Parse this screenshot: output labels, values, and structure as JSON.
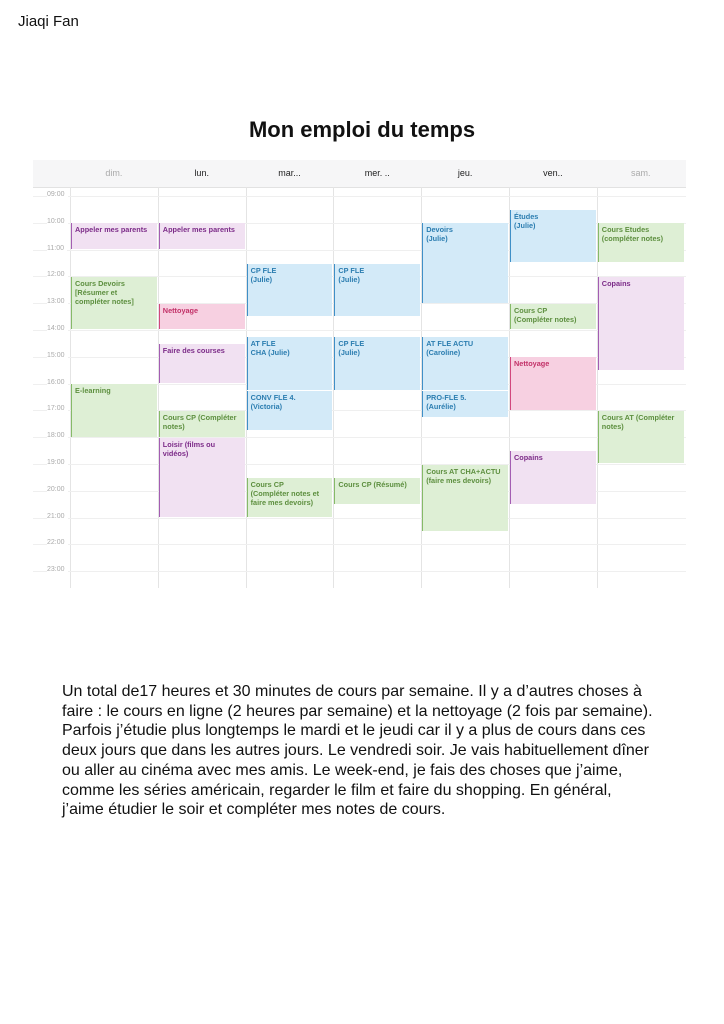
{
  "author": "Jiaqi Fan",
  "title": "Mon emploi du temps",
  "calendar": {
    "days": [
      {
        "label": "dim.",
        "muted": true
      },
      {
        "label": "lun.",
        "muted": false
      },
      {
        "label": "mar...",
        "muted": false
      },
      {
        "label": "mer. ..",
        "muted": false
      },
      {
        "label": "jeu.",
        "muted": false
      },
      {
        "label": "ven..",
        "muted": false
      },
      {
        "label": "sam.",
        "muted": true
      }
    ],
    "hours": [
      "09:00",
      "10:00",
      "11:00",
      "12:00",
      "13:00",
      "14:00",
      "15:00",
      "16:00",
      "17:00",
      "18:00",
      "19:00",
      "20:00",
      "21:00",
      "22:00",
      "23:00"
    ],
    "colors": {
      "purple": "#f1e1f2",
      "green": "#deefd5",
      "blue": "#d3eaf8",
      "pink": "#f7d0e1"
    },
    "events": [
      {
        "day": 0,
        "start": "10:00",
        "end": "11:00",
        "color": "purple",
        "text": "Appeler mes parents"
      },
      {
        "day": 0,
        "start": "12:00",
        "end": "14:00",
        "color": "green",
        "text": "Cours Devoirs\n[Résumer et\ncompléter notes]"
      },
      {
        "day": 0,
        "start": "16:00",
        "end": "18:00",
        "color": "green",
        "text": "E-learning"
      },
      {
        "day": 1,
        "start": "10:00",
        "end": "11:00",
        "color": "purple",
        "text": "Appeler mes parents"
      },
      {
        "day": 1,
        "start": "13:00",
        "end": "14:00",
        "color": "pink",
        "text": "Nettoyage"
      },
      {
        "day": 1,
        "start": "14:30",
        "end": "16:00",
        "color": "purple",
        "text": "Faire des courses"
      },
      {
        "day": 1,
        "start": "17:00",
        "end": "18:00",
        "color": "green",
        "text": "Cours CP (Compléter\nnotes)"
      },
      {
        "day": 1,
        "start": "18:00",
        "end": "21:00",
        "color": "purple",
        "text": "Loisir (films ou vidéos)"
      },
      {
        "day": 2,
        "start": "11:30",
        "end": "13:30",
        "color": "blue",
        "text": "CP FLE\n(Julie)"
      },
      {
        "day": 2,
        "start": "14:15",
        "end": "16:15",
        "color": "blue",
        "text": "AT FLE\nCHA    (Julie)"
      },
      {
        "day": 2,
        "start": "16:15",
        "end": "17:45",
        "color": "blue",
        "text": "CONV  FLE     4.\n(Victoria)"
      },
      {
        "day": 2,
        "start": "19:30",
        "end": "21:00",
        "color": "green",
        "text": "Cours CP\n(Compléter notes et\nfaire mes devoirs)"
      },
      {
        "day": 3,
        "start": "11:30",
        "end": "13:30",
        "color": "blue",
        "text": "CP FLE\n(Julie)"
      },
      {
        "day": 3,
        "start": "14:15",
        "end": "16:15",
        "color": "blue",
        "text": "CP FLE\n(Julie)"
      },
      {
        "day": 3,
        "start": "19:30",
        "end": "20:30",
        "color": "green",
        "text": "Cours CP (Résumé)"
      },
      {
        "day": 4,
        "start": "10:00",
        "end": "13:00",
        "color": "blue",
        "text": "Devoirs\n(Julie)"
      },
      {
        "day": 4,
        "start": "14:15",
        "end": "16:15",
        "color": "blue",
        "text": "AT FLE              ACTU\n(Caroline)"
      },
      {
        "day": 4,
        "start": "16:15",
        "end": "17:15",
        "color": "blue",
        "text": "PRO-FLE 5.\n(Aurélie)"
      },
      {
        "day": 4,
        "start": "19:00",
        "end": "21:30",
        "color": "green",
        "text": "Cours AT  CHA+ACTU\n(faire mes devoirs)"
      },
      {
        "day": 5,
        "start": "09:30",
        "end": "11:30",
        "color": "blue",
        "text": "Études\n(Julie)"
      },
      {
        "day": 5,
        "start": "13:00",
        "end": "14:00",
        "color": "green",
        "text": "Cours CP\n(Compléter notes)"
      },
      {
        "day": 5,
        "start": "15:00",
        "end": "17:00",
        "color": "pink",
        "text": "Nettoyage"
      },
      {
        "day": 5,
        "start": "18:30",
        "end": "20:30",
        "color": "purple",
        "text": "Copains"
      },
      {
        "day": 6,
        "start": "10:00",
        "end": "11:30",
        "color": "green",
        "text": "Cours  Etudes\n(compléter notes)"
      },
      {
        "day": 6,
        "start": "12:00",
        "end": "15:30",
        "color": "purple",
        "text": "Copains"
      },
      {
        "day": 6,
        "start": "17:00",
        "end": "19:00",
        "color": "green",
        "text": "Cours AT (Compléter\nnotes)"
      }
    ]
  },
  "paragraph": [
    "Un total de17 heures et 30 minutes de cours par semaine. Il y a d’autres choses à",
    "faire : le cours en ligne (2 heures par semaine) et la nettoyage  (2 fois par semaine).",
    "Parfois j’étudie plus longtemps le mardi et le jeudi car il y a plus de cours dans ces",
    "deux jours que dans les autres jours. Le vendredi soir. Je vais habituellement dîner",
    "ou aller au cinéma avec mes amis. Le week-end, je fais des choses que j’aime,",
    "comme les séries américain, regarder le film et faire du shopping. En général,",
    "j’aime étudier le soir et compléter mes notes de cours."
  ]
}
